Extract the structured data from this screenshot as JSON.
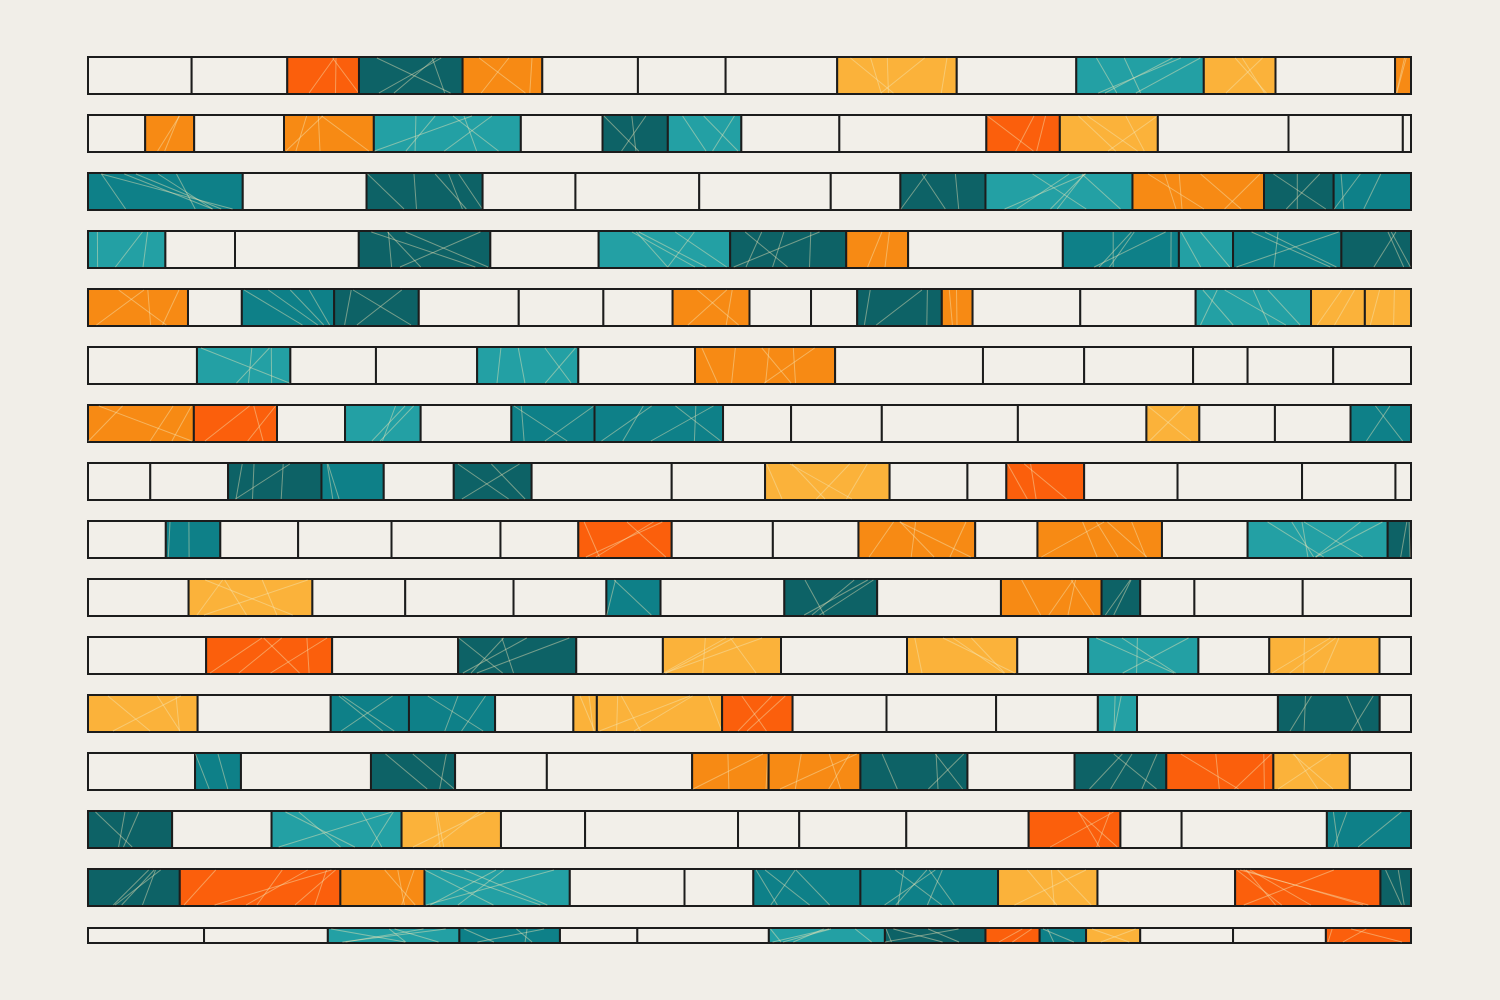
{
  "background": "#f1eee8",
  "stroke": "#1c1c1c",
  "scratch_color": "#f4e6b8",
  "palette": {
    "E": "#f2efe9",
    "O": "#f78a14",
    "R": "#fb5f0c",
    "Y": "#fbb23a",
    "T": "#23a0a4",
    "K": "#0e8088",
    "D": "#0d6266"
  },
  "rows": [
    [
      [
        "E",
        13
      ],
      [
        "E",
        12
      ],
      [
        "R",
        9
      ],
      [
        "D",
        13
      ],
      [
        "O",
        10
      ],
      [
        "E",
        12
      ],
      [
        "E",
        11
      ],
      [
        "E",
        14
      ],
      [
        "Y",
        15
      ],
      [
        "E",
        15
      ],
      [
        "T",
        16
      ],
      [
        "Y",
        9
      ],
      [
        "E",
        15
      ],
      [
        "O",
        2
      ]
    ],
    [
      [
        "E",
        7
      ],
      [
        "O",
        6
      ],
      [
        "E",
        11
      ],
      [
        "O",
        11
      ],
      [
        "T",
        18
      ],
      [
        "E",
        10
      ],
      [
        "D",
        8
      ],
      [
        "T",
        9
      ],
      [
        "E",
        12
      ],
      [
        "E",
        18
      ],
      [
        "R",
        9
      ],
      [
        "Y",
        12
      ],
      [
        "E",
        16
      ],
      [
        "E",
        14
      ],
      [
        "E",
        1
      ]
    ],
    [
      [
        "K",
        20
      ],
      [
        "E",
        16
      ],
      [
        "D",
        15
      ],
      [
        "E",
        12
      ],
      [
        "E",
        16
      ],
      [
        "E",
        17
      ],
      [
        "E",
        9
      ],
      [
        "D",
        11
      ],
      [
        "T",
        19
      ],
      [
        "O",
        17
      ],
      [
        "D",
        9
      ],
      [
        "K",
        10
      ]
    ],
    [
      [
        "T",
        10
      ],
      [
        "E",
        9
      ],
      [
        "E",
        16
      ],
      [
        "D",
        17
      ],
      [
        "E",
        14
      ],
      [
        "T",
        17
      ],
      [
        "D",
        15
      ],
      [
        "O",
        8
      ],
      [
        "E",
        20
      ],
      [
        "K",
        15
      ],
      [
        "T",
        7
      ],
      [
        "K",
        14
      ],
      [
        "D",
        9
      ]
    ],
    [
      [
        "O",
        13
      ],
      [
        "E",
        7
      ],
      [
        "K",
        12
      ],
      [
        "D",
        11
      ],
      [
        "E",
        13
      ],
      [
        "E",
        11
      ],
      [
        "E",
        9
      ],
      [
        "O",
        10
      ],
      [
        "E",
        8
      ],
      [
        "E",
        6
      ],
      [
        "D",
        11
      ],
      [
        "O",
        4
      ],
      [
        "E",
        14
      ],
      [
        "E",
        15
      ],
      [
        "T",
        15
      ],
      [
        "Y",
        7
      ],
      [
        "Y",
        6
      ]
    ],
    [
      [
        "E",
        14
      ],
      [
        "T",
        12
      ],
      [
        "E",
        11
      ],
      [
        "E",
        13
      ],
      [
        "T",
        13
      ],
      [
        "E",
        15
      ],
      [
        "O",
        18
      ],
      [
        "E",
        19
      ],
      [
        "E",
        13
      ],
      [
        "E",
        14
      ],
      [
        "E",
        7
      ],
      [
        "E",
        11
      ],
      [
        "E",
        10
      ]
    ],
    [
      [
        "O",
        14
      ],
      [
        "R",
        11
      ],
      [
        "E",
        9
      ],
      [
        "T",
        10
      ],
      [
        "E",
        12
      ],
      [
        "K",
        11
      ],
      [
        "K",
        17
      ],
      [
        "E",
        9
      ],
      [
        "E",
        12
      ],
      [
        "E",
        18
      ],
      [
        "E",
        17
      ],
      [
        "Y",
        7
      ],
      [
        "E",
        10
      ],
      [
        "E",
        10
      ],
      [
        "K",
        8
      ]
    ],
    [
      [
        "E",
        8
      ],
      [
        "E",
        10
      ],
      [
        "D",
        12
      ],
      [
        "K",
        8
      ],
      [
        "E",
        9
      ],
      [
        "D",
        10
      ],
      [
        "E",
        18
      ],
      [
        "E",
        12
      ],
      [
        "Y",
        16
      ],
      [
        "E",
        10
      ],
      [
        "E",
        5
      ],
      [
        "R",
        10
      ],
      [
        "E",
        12
      ],
      [
        "E",
        16
      ],
      [
        "E",
        12
      ],
      [
        "E",
        2
      ]
    ],
    [
      [
        "E",
        10
      ],
      [
        "K",
        7
      ],
      [
        "E",
        10
      ],
      [
        "E",
        12
      ],
      [
        "E",
        14
      ],
      [
        "E",
        10
      ],
      [
        "R",
        12
      ],
      [
        "E",
        13
      ],
      [
        "E",
        11
      ],
      [
        "O",
        15
      ],
      [
        "E",
        8
      ],
      [
        "O",
        16
      ],
      [
        "E",
        11
      ],
      [
        "T",
        18
      ],
      [
        "D",
        3
      ]
    ],
    [
      [
        "E",
        13
      ],
      [
        "Y",
        16
      ],
      [
        "E",
        12
      ],
      [
        "E",
        14
      ],
      [
        "E",
        12
      ],
      [
        "K",
        7
      ],
      [
        "E",
        16
      ],
      [
        "D",
        12
      ],
      [
        "E",
        16
      ],
      [
        "O",
        13
      ],
      [
        "D",
        5
      ],
      [
        "E",
        7
      ],
      [
        "E",
        14
      ],
      [
        "E",
        14
      ]
    ],
    [
      [
        "E",
        15
      ],
      [
        "R",
        16
      ],
      [
        "E",
        16
      ],
      [
        "D",
        15
      ],
      [
        "E",
        11
      ],
      [
        "Y",
        15
      ],
      [
        "E",
        16
      ],
      [
        "Y",
        14
      ],
      [
        "E",
        9
      ],
      [
        "T",
        14
      ],
      [
        "E",
        9
      ],
      [
        "Y",
        14
      ],
      [
        "E",
        4
      ]
    ],
    [
      [
        "Y",
        14
      ],
      [
        "E",
        17
      ],
      [
        "K",
        10
      ],
      [
        "K",
        11
      ],
      [
        "E",
        10
      ],
      [
        "Y",
        3
      ],
      [
        "Y",
        16
      ],
      [
        "R",
        9
      ],
      [
        "E",
        12
      ],
      [
        "E",
        14
      ],
      [
        "E",
        13
      ],
      [
        "T",
        5
      ],
      [
        "E",
        18
      ],
      [
        "D",
        13
      ],
      [
        "E",
        4
      ]
    ],
    [
      [
        "E",
        14
      ],
      [
        "K",
        6
      ],
      [
        "E",
        17
      ],
      [
        "D",
        11
      ],
      [
        "E",
        12
      ],
      [
        "E",
        19
      ],
      [
        "O",
        10
      ],
      [
        "O",
        12
      ],
      [
        "D",
        14
      ],
      [
        "E",
        14
      ],
      [
        "D",
        12
      ],
      [
        "R",
        14
      ],
      [
        "Y",
        10
      ],
      [
        "E",
        8
      ]
    ],
    [
      [
        "D",
        11
      ],
      [
        "E",
        13
      ],
      [
        "T",
        17
      ],
      [
        "Y",
        13
      ],
      [
        "E",
        11
      ],
      [
        "E",
        20
      ],
      [
        "E",
        8
      ],
      [
        "E",
        14
      ],
      [
        "E",
        16
      ],
      [
        "R",
        12
      ],
      [
        "E",
        8
      ],
      [
        "E",
        19
      ],
      [
        "K",
        11
      ]
    ],
    [
      [
        "D",
        12
      ],
      [
        "R",
        21
      ],
      [
        "O",
        11
      ],
      [
        "T",
        19
      ],
      [
        "E",
        15
      ],
      [
        "E",
        9
      ],
      [
        "K",
        14
      ],
      [
        "K",
        18
      ],
      [
        "Y",
        13
      ],
      [
        "E",
        18
      ],
      [
        "R",
        19
      ],
      [
        "D",
        4
      ]
    ],
    [
      [
        "E",
        15
      ],
      [
        "E",
        16
      ],
      [
        "T",
        17
      ],
      [
        "K",
        13
      ],
      [
        "E",
        10
      ],
      [
        "E",
        17
      ],
      [
        "T",
        15
      ],
      [
        "D",
        13
      ],
      [
        "R",
        7
      ],
      [
        "K",
        6
      ],
      [
        "Y",
        7
      ],
      [
        "E",
        12
      ],
      [
        "E",
        12
      ],
      [
        "R",
        11
      ]
    ]
  ]
}
